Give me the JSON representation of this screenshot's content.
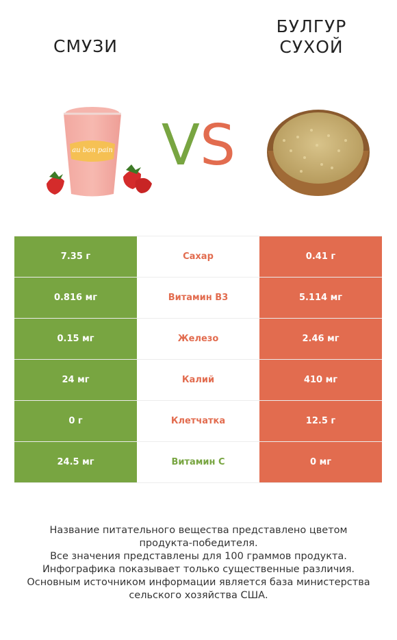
{
  "header": {
    "left_title": "СМУЗИ",
    "right_title_line1": "БУЛГУР",
    "right_title_line2": "СУХОЙ",
    "vs_v": "V",
    "vs_s": "S"
  },
  "colors": {
    "left_accent": "#78a541",
    "right_accent": "#e26c4f"
  },
  "comparison": {
    "rows": [
      {
        "left": "7.35 г",
        "nutrient": "Сахар",
        "right": "0.41 г",
        "winner": "right"
      },
      {
        "left": "0.816 мг",
        "nutrient": "Витамин B3",
        "right": "5.114 мг",
        "winner": "right"
      },
      {
        "left": "0.15 мг",
        "nutrient": "Железо",
        "right": "2.46 мг",
        "winner": "right"
      },
      {
        "left": "24 мг",
        "nutrient": "Калий",
        "right": "410 мг",
        "winner": "right"
      },
      {
        "left": "0 г",
        "nutrient": "Клетчатка",
        "right": "12.5 г",
        "winner": "right"
      },
      {
        "left": "24.5 мг",
        "nutrient": "Витамин C",
        "right": "0 мг",
        "winner": "left"
      }
    ]
  },
  "cup_label": "au bon pain",
  "footer": {
    "line1": "Название питательного вещества представлено цветом",
    "line2": "продукта-победителя.",
    "line3": "Все значения представлены для 100 граммов продукта.",
    "line4": "Инфографика показывает только существенные различия.",
    "line5": "Основным источником информации является база министерства",
    "line6": "сельского хозяйства США."
  }
}
